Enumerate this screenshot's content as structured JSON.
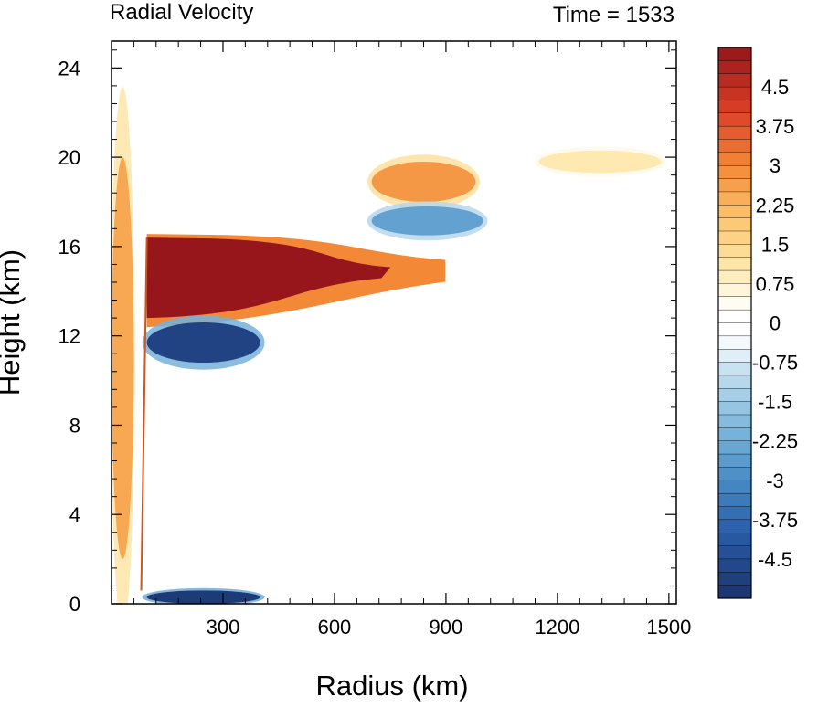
{
  "chart_data": {
    "type": "heatmap",
    "title": "Radial Velocity",
    "right_title": "Time = 1533",
    "xlabel": "Radius (km)",
    "ylabel": "Height (km)",
    "xlim": [
      0,
      1520
    ],
    "ylim": [
      0,
      25.2
    ],
    "x_ticks": [
      300,
      600,
      900,
      1200,
      1500
    ],
    "y_ticks": [
      0,
      4,
      8,
      12,
      16,
      20,
      24
    ],
    "colorbar": {
      "min": -5.25,
      "max": 5.25,
      "interval": 0.25,
      "tick_values": [
        4.5,
        3.75,
        3,
        2.25,
        1.5,
        0.75,
        0,
        -0.75,
        -1.5,
        -2.25,
        -3,
        -3.75,
        -4.5
      ],
      "tick_labels": [
        "4.5",
        "3.75",
        "3",
        "2.25",
        "1.5",
        "0.75",
        "0",
        "-0.75",
        "-1.5",
        "-2.25",
        "-3",
        "-3.75",
        "-4.5"
      ]
    },
    "features": [
      {
        "name": "upper outflow jet",
        "x_range": [
          95,
          800
        ],
        "z_range": [
          12.8,
          16.4
        ],
        "peak_value": 5.25
      },
      {
        "name": "inflow below outflow",
        "x_range": [
          95,
          400
        ],
        "z_range": [
          10.8,
          12.6
        ],
        "peak_value": -4.75
      },
      {
        "name": "boundary layer inflow",
        "x_range": [
          95,
          400
        ],
        "z_range": [
          0,
          0.6
        ],
        "peak_value": -5.0
      },
      {
        "name": "secondary outflow",
        "x_range": [
          700,
          980
        ],
        "z_range": [
          18.0,
          19.8
        ],
        "peak_value": 2.75
      },
      {
        "name": "upper inflow band",
        "x_range": [
          700,
          1000
        ],
        "z_range": [
          16.5,
          17.8
        ],
        "peak_value": -2.5
      },
      {
        "name": "eye wall outflow column",
        "x_range": [
          0,
          60
        ],
        "z_range": [
          2,
          20
        ],
        "peak_value": 2.5
      },
      {
        "name": "far-field upper outflow",
        "x_range": [
          1150,
          1480
        ],
        "z_range": [
          19.3,
          20.3
        ],
        "peak_value": 1.0
      }
    ]
  }
}
